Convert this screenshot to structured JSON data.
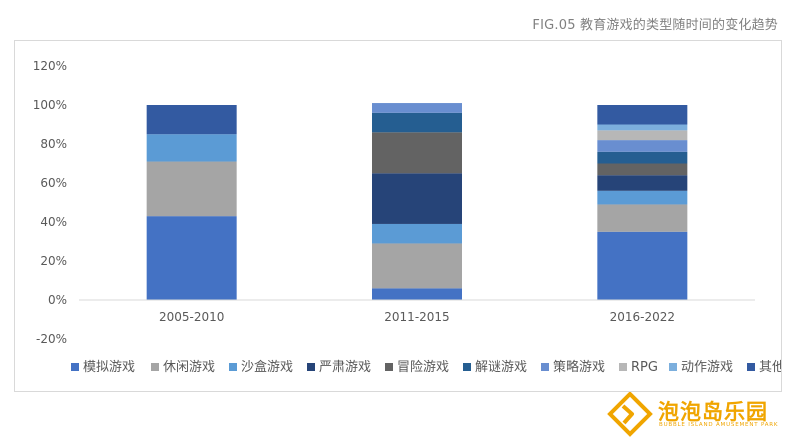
{
  "figure": {
    "title": "FIG.05 教育游戏的类型随时间的变化趋势"
  },
  "chart_data": {
    "type": "bar",
    "stacked": true,
    "categories": [
      "2005-2010",
      "2011-2015",
      "2016-2022"
    ],
    "ylim": [
      -20,
      120
    ],
    "yticks": [
      "-20%",
      "0%",
      "20%",
      "40%",
      "60%",
      "80%",
      "100%",
      "120%"
    ],
    "ytick_values": [
      -20,
      0,
      20,
      40,
      60,
      80,
      100,
      120
    ],
    "grid": false,
    "legend_position": "bottom",
    "series": [
      {
        "name": "模拟游戏",
        "color": "#4472c4",
        "values": [
          43,
          6,
          35
        ]
      },
      {
        "name": "休闲游戏",
        "color": "#a5a5a5",
        "values": [
          28,
          23,
          14
        ]
      },
      {
        "name": "沙盒游戏",
        "color": "#5b9bd5",
        "values": [
          14,
          10,
          7
        ]
      },
      {
        "name": "严肃游戏",
        "color": "#264478",
        "values": [
          0,
          26,
          8
        ]
      },
      {
        "name": "冒险游戏",
        "color": "#636363",
        "values": [
          0,
          21,
          6
        ]
      },
      {
        "name": "解谜游戏",
        "color": "#255e91",
        "values": [
          0,
          10,
          6
        ]
      },
      {
        "name": "策略游戏",
        "color": "#698ed0",
        "values": [
          0,
          5,
          6
        ]
      },
      {
        "name": "RPG",
        "color": "#b7b7b7",
        "values": [
          0,
          0,
          5
        ]
      },
      {
        "name": "动作游戏",
        "color": "#7cafdd",
        "values": [
          0,
          0,
          3
        ]
      },
      {
        "name": "其他",
        "color": "#335aa1",
        "values": [
          15,
          0,
          10
        ]
      }
    ]
  },
  "logo": {
    "name": "泡泡岛乐园",
    "subtitle": "BUBBLE ISLAND AMUSEMENT PARK",
    "color": "#f0a500"
  }
}
